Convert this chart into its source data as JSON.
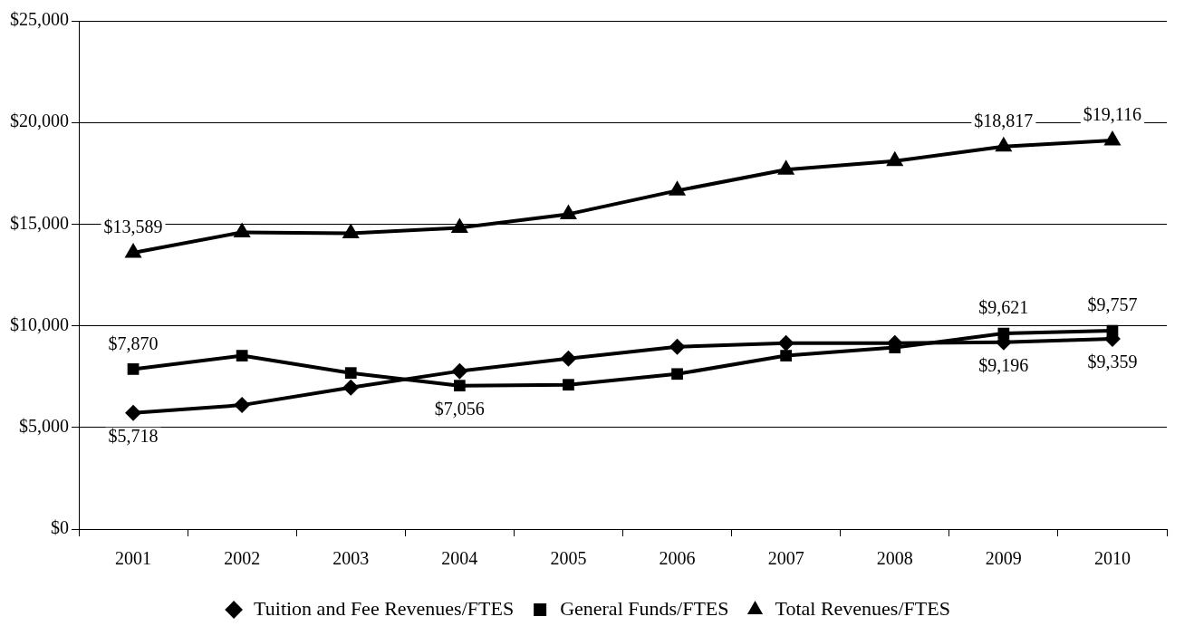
{
  "chart_data": {
    "type": "line",
    "categories": [
      "2001",
      "2002",
      "2003",
      "2004",
      "2005",
      "2006",
      "2007",
      "2008",
      "2009",
      "2010"
    ],
    "series": [
      {
        "name": "Tuition and Fee Revenues/FTES",
        "color": "#000000",
        "marker": "diamond",
        "values": [
          5718,
          6100,
          6960,
          7770,
          8390,
          8970,
          9150,
          9150,
          9196,
          9359
        ],
        "value_labels": [
          "$5,718",
          null,
          null,
          null,
          null,
          null,
          null,
          null,
          "$9,196",
          "$9,359"
        ]
      },
      {
        "name": "General Funds/FTES",
        "color": "#000000",
        "marker": "square",
        "values": [
          7870,
          8530,
          7680,
          7056,
          7100,
          7630,
          8530,
          8930,
          9621,
          9757
        ],
        "value_labels": [
          "$7,870",
          null,
          null,
          "$7,056",
          null,
          null,
          null,
          null,
          "$9,621",
          "$9,757"
        ]
      },
      {
        "name": "Total Revenues/FTES",
        "color": "#000000",
        "marker": "triangle",
        "values": [
          13589,
          14600,
          14550,
          14820,
          15490,
          16650,
          17680,
          18100,
          18817,
          19116
        ],
        "value_labels": [
          "$13,589",
          null,
          null,
          null,
          null,
          null,
          null,
          null,
          "$18,817",
          "$19,116"
        ]
      }
    ],
    "ylim": [
      0,
      25000
    ],
    "yticks": [
      {
        "value": 0,
        "label": "$0"
      },
      {
        "value": 5000,
        "label": "$5,000"
      },
      {
        "value": 10000,
        "label": "$10,000"
      },
      {
        "value": 15000,
        "label": "$15,000"
      },
      {
        "value": 20000,
        "label": "$20,000"
      },
      {
        "value": 25000,
        "label": "$25,000"
      }
    ],
    "grid": "y",
    "legend": "bottom",
    "line_style": "solid"
  }
}
